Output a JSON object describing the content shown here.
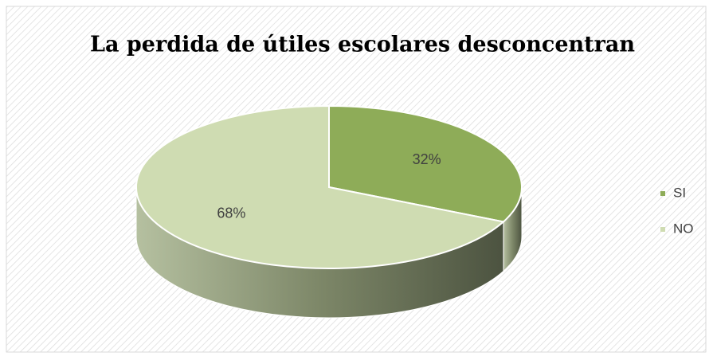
{
  "chart_data": {
    "type": "pie",
    "title": "La perdida de útiles escolares desconcentran",
    "categories": [
      "SI",
      "NO"
    ],
    "values": [
      32,
      68
    ],
    "value_labels": [
      "32%",
      "68%"
    ],
    "colors": [
      "#8eac58",
      "#cfdcb2"
    ],
    "legend": "right"
  }
}
